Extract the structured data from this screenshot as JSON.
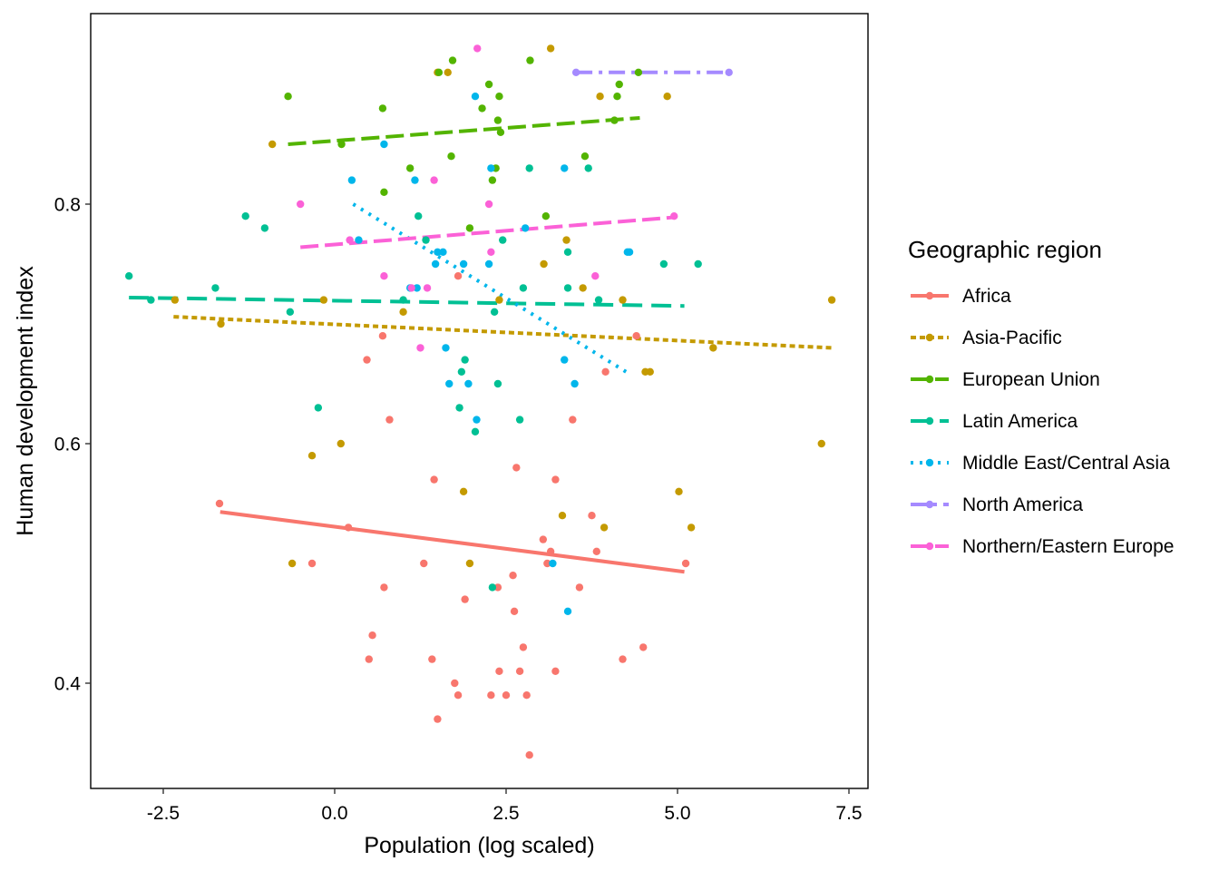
{
  "chart_data": {
    "type": "scatter",
    "title": "",
    "xlabel": "Population (log scaled)",
    "ylabel": "Human development index",
    "xlim": [
      -3.5,
      7.75
    ],
    "ylim": [
      0.315,
      0.965
    ],
    "x_ticks": [
      -2.5,
      0.0,
      2.5,
      5.0,
      7.5
    ],
    "x_tick_labels": [
      "-2.5",
      "0.0",
      "2.5",
      "5.0",
      "7.5"
    ],
    "y_ticks": [
      0.4,
      0.6,
      0.8
    ],
    "y_tick_labels": [
      "0.4",
      "0.6",
      "0.8"
    ],
    "grid": false,
    "legend": {
      "title": "Geographic region",
      "placement": "right"
    },
    "series": [
      {
        "name": "Africa",
        "color": "#F8766D",
        "dash": "solid",
        "trend": [
          [
            -1.67,
            0.543
          ],
          [
            5.1,
            0.493
          ]
        ],
        "points": [
          [
            -1.68,
            0.55
          ],
          [
            -0.33,
            0.5
          ],
          [
            0.2,
            0.53
          ],
          [
            0.47,
            0.67
          ],
          [
            0.5,
            0.42
          ],
          [
            0.55,
            0.44
          ],
          [
            0.7,
            0.69
          ],
          [
            0.72,
            0.48
          ],
          [
            0.8,
            0.62
          ],
          [
            1.3,
            0.5
          ],
          [
            1.42,
            0.42
          ],
          [
            1.45,
            0.57
          ],
          [
            1.5,
            0.37
          ],
          [
            1.8,
            0.74
          ],
          [
            1.75,
            0.4
          ],
          [
            1.8,
            0.39
          ],
          [
            1.9,
            0.47
          ],
          [
            2.28,
            0.39
          ],
          [
            2.38,
            0.48
          ],
          [
            2.4,
            0.41
          ],
          [
            2.5,
            0.39
          ],
          [
            2.6,
            0.49
          ],
          [
            2.62,
            0.46
          ],
          [
            2.65,
            0.58
          ],
          [
            2.7,
            0.41
          ],
          [
            2.75,
            0.43
          ],
          [
            2.8,
            0.39
          ],
          [
            2.84,
            0.34
          ],
          [
            3.04,
            0.52
          ],
          [
            3.1,
            0.5
          ],
          [
            3.15,
            0.51
          ],
          [
            3.22,
            0.57
          ],
          [
            3.22,
            0.41
          ],
          [
            3.47,
            0.62
          ],
          [
            3.57,
            0.48
          ],
          [
            3.75,
            0.54
          ],
          [
            3.82,
            0.51
          ],
          [
            3.95,
            0.66
          ],
          [
            4.4,
            0.69
          ],
          [
            4.2,
            0.42
          ],
          [
            4.5,
            0.43
          ],
          [
            5.12,
            0.5
          ]
        ]
      },
      {
        "name": "Asia-Pacific",
        "color": "#C49A00",
        "dash": "short-dash",
        "trend": [
          [
            -2.35,
            0.706
          ],
          [
            7.25,
            0.68
          ]
        ],
        "points": [
          [
            -2.33,
            0.72
          ],
          [
            -1.66,
            0.7
          ],
          [
            -0.91,
            0.85
          ],
          [
            -0.62,
            0.5
          ],
          [
            -0.33,
            0.59
          ],
          [
            -0.16,
            0.72
          ],
          [
            0.09,
            0.6
          ],
          [
            1.0,
            0.71
          ],
          [
            1.5,
            0.91
          ],
          [
            1.65,
            0.91
          ],
          [
            1.88,
            0.56
          ],
          [
            1.97,
            0.5
          ],
          [
            2.4,
            0.72
          ],
          [
            3.05,
            0.75
          ],
          [
            3.15,
            0.93
          ],
          [
            3.32,
            0.54
          ],
          [
            3.38,
            0.77
          ],
          [
            3.62,
            0.73
          ],
          [
            3.87,
            0.89
          ],
          [
            3.93,
            0.53
          ],
          [
            4.2,
            0.72
          ],
          [
            4.53,
            0.66
          ],
          [
            4.6,
            0.66
          ],
          [
            4.85,
            0.89
          ],
          [
            5.02,
            0.56
          ],
          [
            5.2,
            0.53
          ],
          [
            5.52,
            0.68
          ],
          [
            7.1,
            0.6
          ],
          [
            7.25,
            0.72
          ]
        ]
      },
      {
        "name": "European Union",
        "color": "#53B400",
        "dash": "long-dash",
        "trend": [
          [
            -0.68,
            0.85
          ],
          [
            4.45,
            0.872
          ]
        ],
        "points": [
          [
            -0.68,
            0.89
          ],
          [
            0.1,
            0.85
          ],
          [
            0.7,
            0.88
          ],
          [
            0.72,
            0.81
          ],
          [
            1.1,
            0.83
          ],
          [
            1.52,
            0.91
          ],
          [
            1.7,
            0.84
          ],
          [
            1.72,
            0.92
          ],
          [
            1.97,
            0.78
          ],
          [
            2.15,
            0.88
          ],
          [
            2.25,
            0.9
          ],
          [
            2.3,
            0.82
          ],
          [
            2.35,
            0.83
          ],
          [
            2.38,
            0.87
          ],
          [
            2.4,
            0.89
          ],
          [
            2.42,
            0.86
          ],
          [
            2.85,
            0.92
          ],
          [
            3.08,
            0.79
          ],
          [
            3.65,
            0.84
          ],
          [
            4.08,
            0.87
          ],
          [
            4.12,
            0.89
          ],
          [
            4.15,
            0.9
          ],
          [
            4.43,
            0.91
          ]
        ]
      },
      {
        "name": "Latin America",
        "color": "#00C094",
        "dash": "dash",
        "trend": [
          [
            -3.0,
            0.722
          ],
          [
            5.1,
            0.715
          ]
        ],
        "points": [
          [
            -3.0,
            0.74
          ],
          [
            -2.68,
            0.72
          ],
          [
            -1.74,
            0.73
          ],
          [
            -1.3,
            0.79
          ],
          [
            -1.02,
            0.78
          ],
          [
            -0.65,
            0.71
          ],
          [
            -0.24,
            0.63
          ],
          [
            1.0,
            0.72
          ],
          [
            1.22,
            0.79
          ],
          [
            1.33,
            0.77
          ],
          [
            1.82,
            0.63
          ],
          [
            1.85,
            0.66
          ],
          [
            1.9,
            0.67
          ],
          [
            2.05,
            0.61
          ],
          [
            2.3,
            0.48
          ],
          [
            2.33,
            0.71
          ],
          [
            2.38,
            0.65
          ],
          [
            2.45,
            0.77
          ],
          [
            2.7,
            0.62
          ],
          [
            2.75,
            0.73
          ],
          [
            2.84,
            0.83
          ],
          [
            3.4,
            0.73
          ],
          [
            3.4,
            0.76
          ],
          [
            3.7,
            0.83
          ],
          [
            3.85,
            0.72
          ],
          [
            4.8,
            0.75
          ],
          [
            5.3,
            0.75
          ]
        ]
      },
      {
        "name": "Middle East/Central Asia",
        "color": "#00B6EB",
        "dash": "dot",
        "trend": [
          [
            0.27,
            0.8
          ],
          [
            4.25,
            0.66
          ]
        ],
        "points": [
          [
            0.25,
            0.82
          ],
          [
            0.35,
            0.77
          ],
          [
            0.72,
            0.85
          ],
          [
            1.1,
            0.73
          ],
          [
            1.17,
            0.82
          ],
          [
            1.2,
            0.73
          ],
          [
            1.47,
            0.75
          ],
          [
            1.5,
            0.76
          ],
          [
            1.58,
            0.76
          ],
          [
            1.62,
            0.68
          ],
          [
            1.67,
            0.65
          ],
          [
            1.88,
            0.75
          ],
          [
            1.95,
            0.65
          ],
          [
            2.05,
            0.89
          ],
          [
            2.07,
            0.62
          ],
          [
            2.25,
            0.75
          ],
          [
            2.28,
            0.83
          ],
          [
            2.78,
            0.78
          ],
          [
            3.18,
            0.5
          ],
          [
            3.35,
            0.67
          ],
          [
            3.35,
            0.83
          ],
          [
            3.4,
            0.46
          ],
          [
            3.5,
            0.65
          ],
          [
            4.27,
            0.76
          ],
          [
            4.3,
            0.76
          ]
        ]
      },
      {
        "name": "North America",
        "color": "#A58AFF",
        "dash": "dash-dot",
        "trend": [
          [
            3.52,
            0.91
          ],
          [
            5.75,
            0.91
          ]
        ],
        "points": [
          [
            3.52,
            0.91
          ],
          [
            5.75,
            0.91
          ]
        ]
      },
      {
        "name": "Northern/Eastern Europe",
        "color": "#FB61D7",
        "dash": "long-dash",
        "trend": [
          [
            -0.5,
            0.764
          ],
          [
            4.95,
            0.789
          ]
        ],
        "points": [
          [
            -0.5,
            0.8
          ],
          [
            0.22,
            0.77
          ],
          [
            0.72,
            0.74
          ],
          [
            1.12,
            0.73
          ],
          [
            1.25,
            0.68
          ],
          [
            1.35,
            0.73
          ],
          [
            1.45,
            0.82
          ],
          [
            2.08,
            0.93
          ],
          [
            2.25,
            0.8
          ],
          [
            2.28,
            0.76
          ],
          [
            3.8,
            0.74
          ],
          [
            4.95,
            0.79
          ]
        ]
      }
    ]
  }
}
